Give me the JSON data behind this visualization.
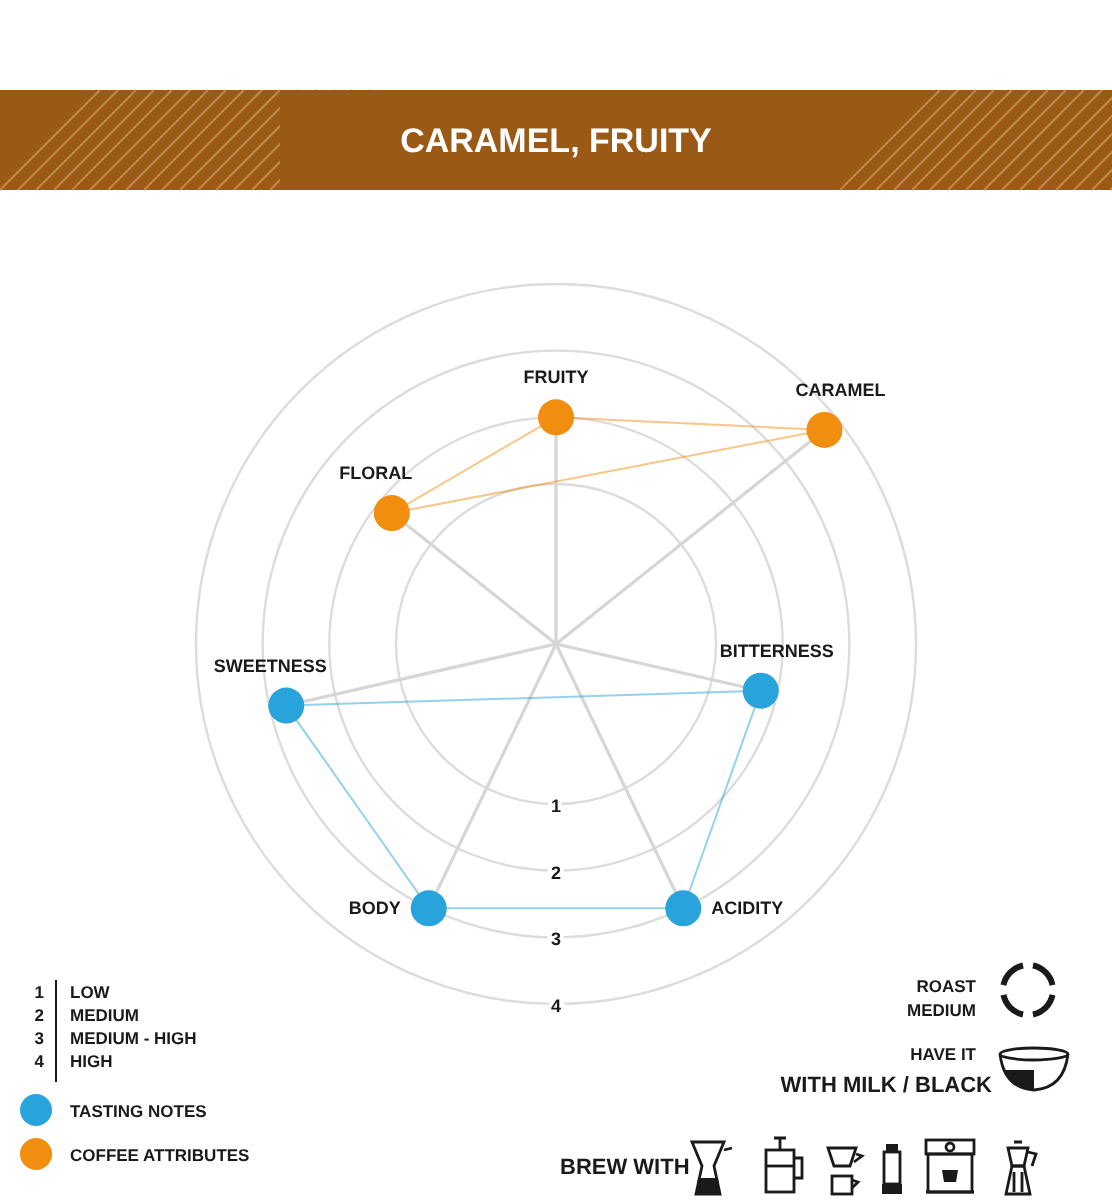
{
  "chart_data": {
    "type": "radar",
    "title": "CARAMEL, FRUITY",
    "categories": [
      "FRUITY",
      "CARAMEL",
      "BITTERNESS",
      "ACIDITY",
      "BODY",
      "SWEETNESS",
      "FLORAL"
    ],
    "series": [
      {
        "name": "TASTING NOTES",
        "color": "#29a3dc",
        "values": [
          null,
          null,
          1.75,
          3,
          3,
          2.75,
          null
        ]
      },
      {
        "name": "COFFEE ATTRIBUTES",
        "color": "#f18d0f",
        "values": [
          2,
          3.75,
          null,
          null,
          null,
          null,
          1.75
        ]
      }
    ],
    "ylim": [
      -1.4,
      4
    ],
    "yticks": [
      1,
      2,
      3,
      4
    ],
    "marker": "circle",
    "legend": "bottom left",
    "annotations": [
      "1",
      "2",
      "3",
      "4",
      "LOW",
      "MEDIUM",
      "MEDIUM - HIGH",
      "HIGH",
      "ROAST",
      "MEDIUM",
      "HAVE IT",
      "WITH MILK / BLACK",
      "BREW WITH"
    ]
  }
}
